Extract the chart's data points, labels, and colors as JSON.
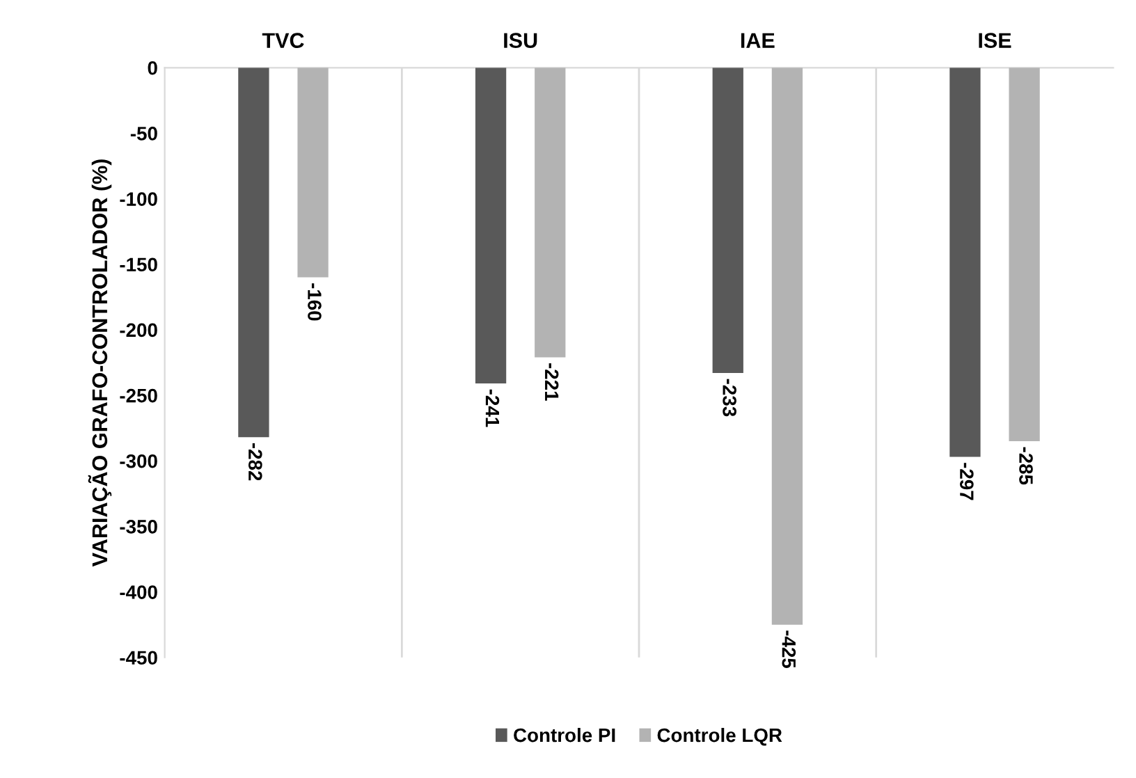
{
  "chart_data": {
    "type": "bar",
    "ylabel": "VARIAÇÃO GRAFO-CONTROLADOR (%)",
    "categories": [
      "TVC",
      "ISU",
      "IAE",
      "ISE"
    ],
    "series": [
      {
        "name": "Controle PI",
        "color": "#595959",
        "values": [
          -282,
          -241,
          -233,
          -297
        ]
      },
      {
        "name": "Controle LQR",
        "color": "#b3b3b3",
        "values": [
          -160,
          -221,
          -425,
          -285
        ]
      }
    ],
    "ylim": [
      -450,
      0
    ],
    "yticks": [
      -450,
      -400,
      -350,
      -300,
      -250,
      -200,
      -150,
      -100,
      -50,
      0
    ],
    "grid": "x",
    "legend": "bottom",
    "data_labels": true
  }
}
